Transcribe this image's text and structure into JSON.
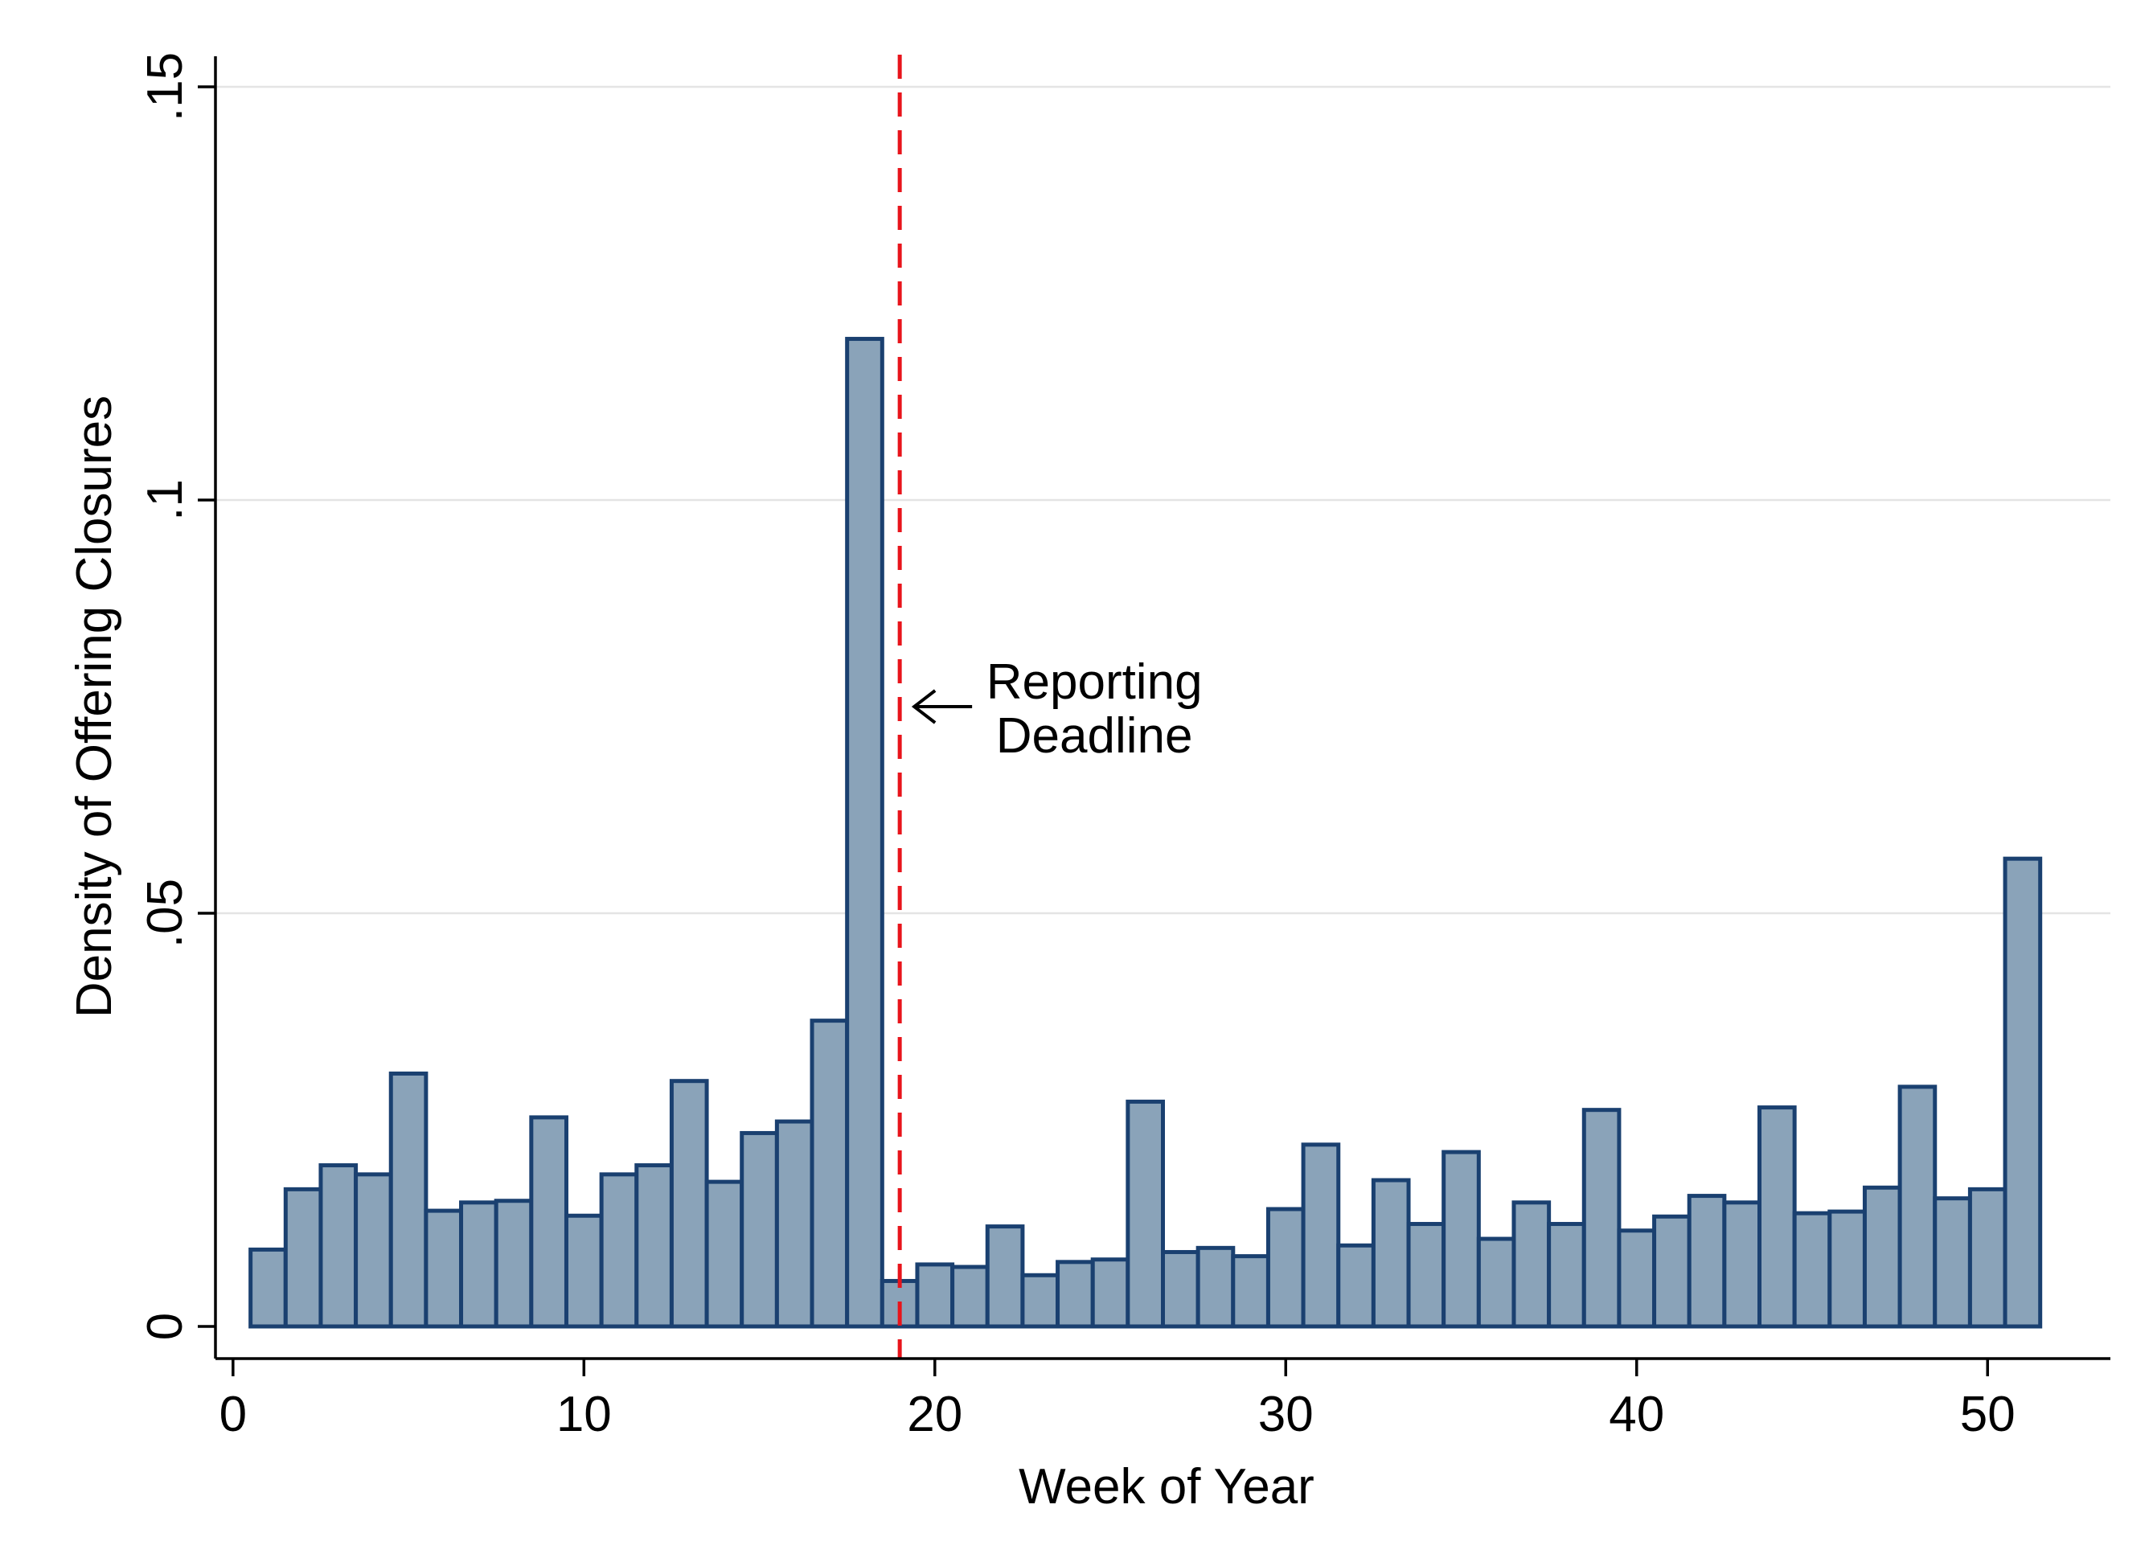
{
  "chart_data": {
    "type": "bar",
    "title": "",
    "xlabel": "Week of Year",
    "ylabel": "Density of Offering Closures",
    "xlim": [
      -0.5,
      53.5
    ],
    "ylim": [
      0,
      0.15
    ],
    "xticks": [
      0,
      10,
      20,
      30,
      40,
      50
    ],
    "xtick_labels": [
      "0",
      "10",
      "20",
      "30",
      "40",
      "50"
    ],
    "yticks": [
      0,
      0.05,
      0.1,
      0.15
    ],
    "ytick_labels": [
      "0",
      ".05",
      ".1",
      ".15"
    ],
    "grid": true,
    "bar_width": 1,
    "x": [
      1,
      2,
      3,
      4,
      5,
      6,
      7,
      8,
      9,
      10,
      11,
      12,
      13,
      14,
      15,
      16,
      17,
      18,
      19,
      20,
      21,
      22,
      23,
      24,
      25,
      26,
      27,
      28,
      29,
      30,
      31,
      32,
      33,
      34,
      35,
      36,
      37,
      38,
      39,
      40,
      41,
      42,
      43,
      44,
      45,
      46,
      47,
      48,
      49,
      50,
      51
    ],
    "values": [
      0.0093,
      0.0166,
      0.0195,
      0.0184,
      0.0306,
      0.014,
      0.015,
      0.0152,
      0.0253,
      0.0134,
      0.0184,
      0.0195,
      0.0297,
      0.0175,
      0.0234,
      0.0248,
      0.037,
      0.1195,
      0.0055,
      0.0075,
      0.0072,
      0.0121,
      0.0062,
      0.0078,
      0.0081,
      0.0272,
      0.009,
      0.0095,
      0.0085,
      0.0142,
      0.022,
      0.0098,
      0.0177,
      0.0124,
      0.0211,
      0.0106,
      0.015,
      0.0124,
      0.0262,
      0.0116,
      0.0133,
      0.0158,
      0.015,
      0.0265,
      0.0137,
      0.0139,
      0.0168,
      0.029,
      0.0155,
      0.0166,
      0.0566
    ],
    "reference_line": {
      "x": 19,
      "style": "dashed",
      "color": "#e8141b"
    },
    "annotation": {
      "lines": [
        "Reporting",
        "Deadline"
      ],
      "arrow_to_x": 19,
      "y": 0.075
    },
    "colors": {
      "bar_fill": "#8aa3b9",
      "bar_edge": "#1a4070",
      "grid": "#e4e4e4",
      "axis": "#000000"
    }
  }
}
